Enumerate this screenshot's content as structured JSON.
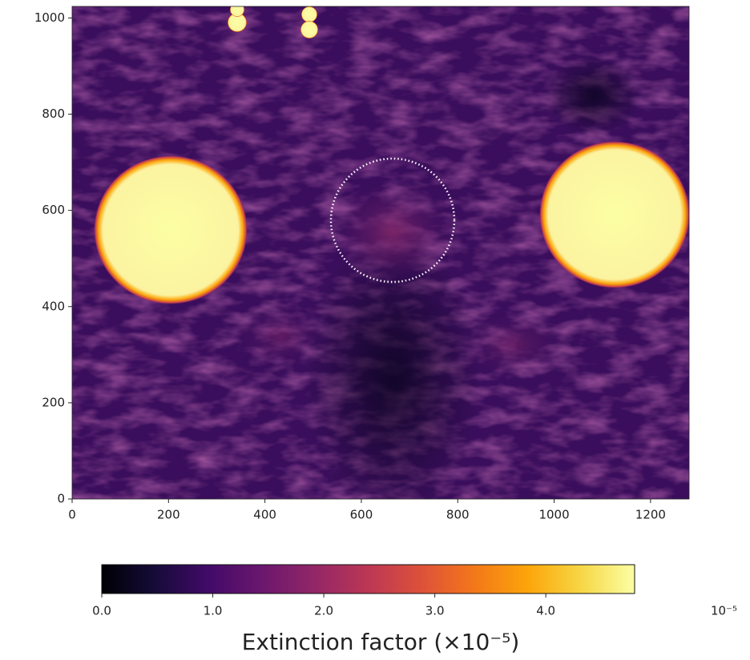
{
  "chart_data": {
    "type": "heatmap",
    "colormap": "inferno",
    "xlim": [
      0,
      1280
    ],
    "ylim": [
      0,
      1024
    ],
    "xticks": [
      0,
      200,
      400,
      600,
      800,
      1000,
      1200
    ],
    "yticks": [
      0,
      200,
      400,
      600,
      800,
      1000
    ],
    "colorbar": {
      "label": "Extinction factor (×10⁻⁵)",
      "offset_text": "10⁻⁵",
      "lim": [
        0,
        4.8
      ],
      "ticks": [
        {
          "value": 0,
          "label": "0.0"
        },
        {
          "value": 1,
          "label": "1.0"
        },
        {
          "value": 2,
          "label": "2.0"
        },
        {
          "value": 3,
          "label": "3.0"
        },
        {
          "value": 4,
          "label": "4.0"
        }
      ]
    }
  }
}
